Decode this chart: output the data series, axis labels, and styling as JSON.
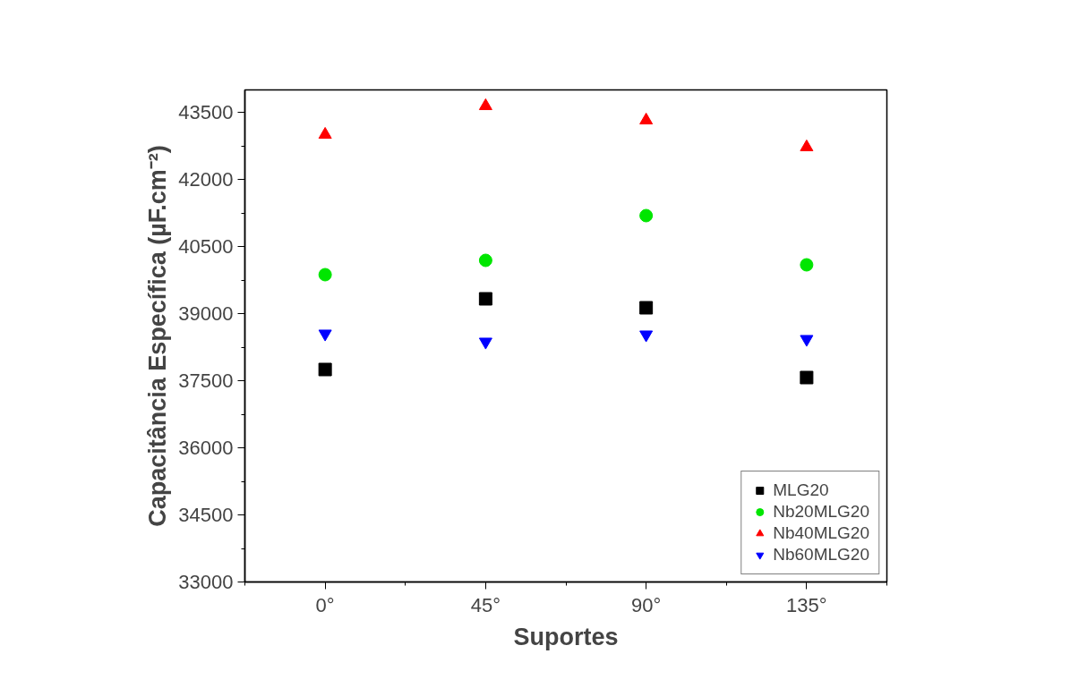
{
  "chart_data": {
    "type": "scatter",
    "xlabel": "Suportes",
    "ylabel": "Capacitância Específica (µF.cm⁻²)",
    "categories": [
      "0°",
      "45°",
      "90°",
      "135°"
    ],
    "series": [
      {
        "name": "MLG20",
        "color": "#000000",
        "marker": "square",
        "values": [
          37750,
          39330,
          39130,
          37570
        ]
      },
      {
        "name": "Nb20MLG20",
        "color": "#00e600",
        "marker": "circle",
        "values": [
          39870,
          40190,
          41190,
          40090
        ]
      },
      {
        "name": "Nb40MLG20",
        "color": "#ff0000",
        "marker": "triangle",
        "values": [
          43000,
          43640,
          43320,
          42720
        ]
      },
      {
        "name": "Nb60MLG20",
        "color": "#0000ff",
        "marker": "triangle_down",
        "values": [
          38550,
          38370,
          38530,
          38430
        ]
      }
    ],
    "ylim": [
      33000,
      44000
    ],
    "yticks": [
      33000,
      34500,
      36000,
      37500,
      39000,
      40500,
      42000,
      43500
    ],
    "grid": false,
    "legend": "bottom right"
  }
}
